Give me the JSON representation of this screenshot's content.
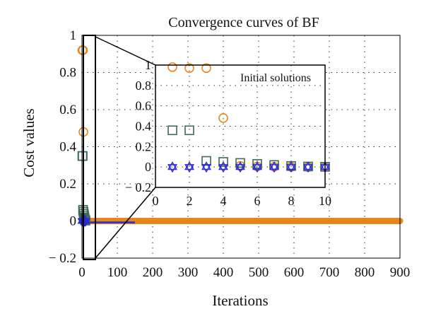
{
  "chart_data": {
    "type": "scatter",
    "title": "Convergence curves of BF",
    "xlabel": "Iterations",
    "ylabel": "Cost values",
    "xlim": [
      0,
      900
    ],
    "ylim": [
      -0.2,
      1
    ],
    "xticks": [
      "0",
      "100",
      "200",
      "300",
      "400",
      "500",
      "600",
      "700",
      "800",
      "900"
    ],
    "yticks": [
      "1",
      "0.8",
      "0.6",
      "0.4",
      "0.2",
      "0",
      "− 0.2"
    ],
    "grid": "dotted",
    "colors": {
      "orange": "#e8861a",
      "green": "#3d6b55",
      "blue": "#2a2ad6"
    },
    "series": [
      {
        "marker": "circle",
        "color": "orange",
        "points": [
          [
            1,
            0.92
          ],
          [
            2,
            0.92
          ],
          [
            3,
            0.92
          ],
          [
            4,
            0.48
          ],
          [
            5,
            0.02
          ],
          [
            6,
            0.015
          ],
          [
            7,
            0.01
          ],
          [
            8,
            0.005
          ],
          [
            9,
            0.003
          ],
          [
            10,
            0.002
          ]
        ],
        "tail": {
          "from": 11,
          "to": 900,
          "value": 0
        }
      },
      {
        "marker": "square",
        "color": "green",
        "points": [
          [
            1,
            0.35
          ],
          [
            2,
            0.35
          ],
          [
            3,
            0.06
          ],
          [
            4,
            0.05
          ],
          [
            5,
            0.04
          ],
          [
            6,
            0.03
          ],
          [
            7,
            0.02
          ],
          [
            8,
            0.01
          ],
          [
            9,
            0.005
          ],
          [
            10,
            0.002
          ]
        ]
      },
      {
        "marker": "star",
        "color": "blue",
        "points": [
          [
            1,
            0
          ],
          [
            2,
            0
          ],
          [
            3,
            0
          ],
          [
            4,
            0
          ],
          [
            5,
            0
          ],
          [
            6,
            0
          ],
          [
            7,
            0
          ],
          [
            8,
            0
          ],
          [
            9,
            0
          ],
          [
            10,
            0
          ]
        ],
        "tail": {
          "from": 11,
          "to": 150,
          "value": 0
        }
      }
    ],
    "inset": {
      "annotation": "Initial solutions",
      "xlim": [
        0,
        10
      ],
      "ylim": [
        -0.2,
        1
      ],
      "xticks": [
        "0",
        "2",
        "4",
        "6",
        "8",
        "10"
      ],
      "yticks": [
        "1",
        "0.8",
        "0.6",
        "0.4",
        "0.2",
        "0",
        "− 0.2"
      ],
      "series": [
        {
          "marker": "circle",
          "color": "orange",
          "points": [
            [
              1,
              0.98
            ],
            [
              2,
              0.97
            ],
            [
              3,
              0.97
            ],
            [
              4,
              0.48
            ],
            [
              5,
              0.01
            ],
            [
              6,
              0.005
            ],
            [
              7,
              0.002
            ],
            [
              8,
              0.001
            ],
            [
              9,
              0
            ],
            [
              10,
              0
            ]
          ]
        },
        {
          "marker": "square",
          "color": "green",
          "points": [
            [
              1,
              0.36
            ],
            [
              2,
              0.36
            ],
            [
              3,
              0.06
            ],
            [
              4,
              0.05
            ],
            [
              5,
              0.04
            ],
            [
              6,
              0.03
            ],
            [
              7,
              0.02
            ],
            [
              8,
              0.01
            ],
            [
              9,
              0.005
            ],
            [
              10,
              0.002
            ]
          ]
        },
        {
          "marker": "star",
          "color": "blue",
          "points": [
            [
              1,
              0
            ],
            [
              2,
              0
            ],
            [
              3,
              0
            ],
            [
              4,
              0
            ],
            [
              5,
              0
            ],
            [
              6,
              0
            ],
            [
              7,
              0
            ],
            [
              8,
              0
            ],
            [
              9,
              0
            ],
            [
              10,
              0
            ]
          ]
        }
      ]
    }
  }
}
